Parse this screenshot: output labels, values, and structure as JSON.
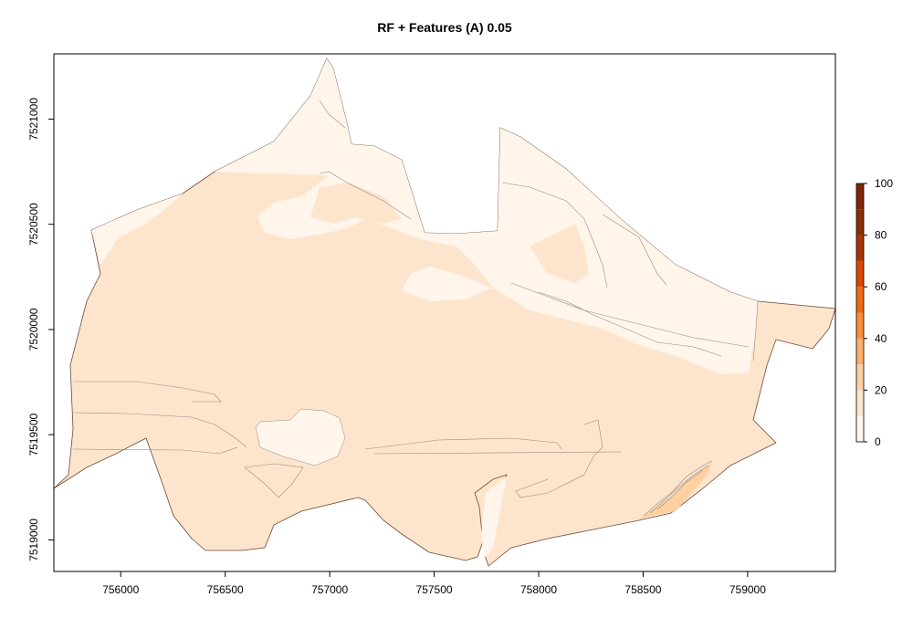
{
  "title": "RF + Features (A) 0.05",
  "x_ticks": [
    "756000",
    "756500",
    "757000",
    "757500",
    "758000",
    "758500",
    "759000"
  ],
  "y_ticks": [
    "7519000",
    "7519500",
    "7520000",
    "7520500",
    "7521000"
  ],
  "legend": {
    "labels": [
      "0",
      "20",
      "40",
      "60",
      "80",
      "100"
    ],
    "colors": [
      "#fff5eb",
      "#fee6ce",
      "#fdd0a2",
      "#fdae6b",
      "#fd8d3c",
      "#f16913",
      "#d94801",
      "#a63603",
      "#8c2d04",
      "#7f2704"
    ]
  },
  "colors": {
    "low_class": "#fff5eb",
    "mid_class": "#fde5cd",
    "boundary": "#6b4a35",
    "contour": "#9a8a80"
  },
  "chart_data": {
    "type": "heatmap",
    "title": "RF + Features (A) 0.05",
    "xlim": [
      755680,
      759420
    ],
    "ylim": [
      7518850,
      7521310
    ],
    "x_ticks": [
      756000,
      756500,
      757000,
      757500,
      758000,
      758500,
      759000
    ],
    "y_ticks": [
      7519000,
      7519500,
      7520000,
      7520500,
      7521000
    ],
    "color_scale": {
      "min": 0,
      "max": 100,
      "breaks": [
        0,
        10,
        20,
        30,
        40,
        50,
        60,
        70,
        80,
        90,
        100
      ]
    },
    "dominant_value_ranges": [
      "0-10",
      "10-20"
    ]
  }
}
